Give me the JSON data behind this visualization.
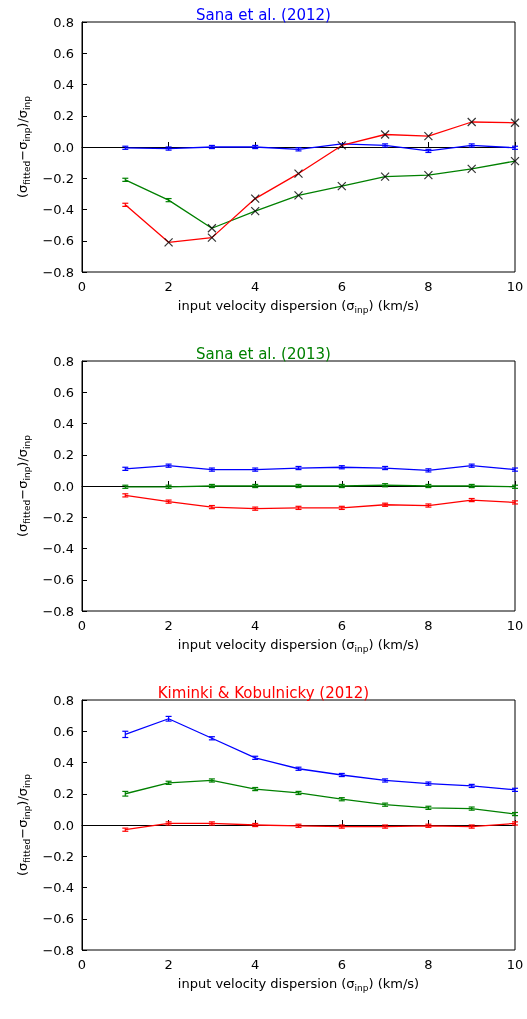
{
  "chart_data": [
    {
      "type": "line",
      "title": "Sana et al. (2012)",
      "xlabel": "input velocity dispersion (σ$_{inp}$) (km/s)",
      "ylabel": "(σ$_{fitted}$−σ$_{inp}$)/σ$_{inp}$",
      "x": [
        1,
        2,
        3,
        4,
        5,
        6,
        7,
        8,
        9,
        10
      ],
      "xlim": [
        0,
        10
      ],
      "xticks": [
        0,
        2,
        4,
        6,
        8,
        10
      ],
      "ylim": [
        -0.8,
        0.8
      ],
      "yticks": [
        {
          "value": -0.8,
          "label": "−0.8"
        },
        {
          "value": -0.6,
          "label": "−0.6"
        },
        {
          "value": -0.4,
          "label": "−0.4"
        },
        {
          "value": -0.2,
          "label": "−0.2"
        },
        {
          "value": 0,
          "label": "0.0"
        },
        {
          "value": 0.2,
          "label": "0.2"
        },
        {
          "value": 0.4,
          "label": "0.4"
        },
        {
          "value": 0.6,
          "label": "0.6"
        },
        {
          "value": 0.8,
          "label": "0.8"
        }
      ],
      "grid": false,
      "marker": "none",
      "series": [
        {
          "color": "#0000ff",
          "values": [
            -0.005,
            -0.01,
            0.0,
            0.0,
            -0.015,
            0.02,
            0.01,
            -0.025,
            0.01,
            -0.005
          ],
          "errors": [
            0.01,
            0.01,
            0.01,
            0.01,
            0.01,
            null,
            0.01,
            0.01,
            0.01,
            0.01
          ]
        },
        {
          "color": "#008000",
          "values": [
            -0.21,
            -0.34,
            -0.52,
            -0.41,
            -0.31,
            -0.25,
            -0.19,
            -0.18,
            -0.14,
            -0.09
          ],
          "errors": [
            0.01,
            0.01,
            null,
            null,
            null,
            null,
            null,
            null,
            null,
            null
          ]
        },
        {
          "color": "#ff0000",
          "values": [
            -0.37,
            -0.61,
            -0.58,
            -0.33,
            -0.17,
            0.01,
            0.08,
            0.07,
            0.16,
            0.155
          ],
          "errors": [
            0.01,
            null,
            null,
            null,
            null,
            null,
            null,
            null,
            null,
            null
          ]
        },
        {
          "type": "scatter",
          "marker": "cross",
          "color": "#000000",
          "x": [
            2,
            3,
            4,
            5,
            6,
            7,
            8,
            9,
            10
          ],
          "values": [
            -0.61,
            -0.58,
            -0.33,
            -0.17,
            0.01,
            0.08,
            0.07,
            0.16,
            0.155
          ]
        },
        {
          "type": "scatter",
          "marker": "cross",
          "color": "#000000",
          "x": [
            3,
            4,
            5,
            6,
            7,
            8,
            9,
            10
          ],
          "values": [
            -0.52,
            -0.41,
            -0.31,
            -0.25,
            -0.19,
            -0.18,
            -0.14,
            -0.09
          ]
        }
      ],
      "ref_lines": [
        {
          "axis": "y",
          "value": 0,
          "label": null,
          "color": "#000000"
        }
      ]
    },
    {
      "type": "line",
      "title": "Sana et al. (2013)",
      "xlabel": "input velocity dispersion (σ$_{inp}$) (km/s)",
      "ylabel": "(σ$_{fitted}$−σ$_{inp}$)/σ$_{inp}$",
      "x": [
        1,
        2,
        3,
        4,
        5,
        6,
        7,
        8,
        9,
        10
      ],
      "xlim": [
        0,
        10
      ],
      "xticks": [
        0,
        2,
        4,
        6,
        8,
        10
      ],
      "ylim": [
        -0.8,
        0.8
      ],
      "yticks": [
        {
          "value": -0.8,
          "label": "−0.8"
        },
        {
          "value": -0.6,
          "label": "−0.6"
        },
        {
          "value": -0.4,
          "label": "−0.4"
        },
        {
          "value": -0.2,
          "label": "−0.2"
        },
        {
          "value": 0,
          "label": "0.0"
        },
        {
          "value": 0.2,
          "label": "0.2"
        },
        {
          "value": 0.4,
          "label": "0.4"
        },
        {
          "value": 0.6,
          "label": "0.6"
        },
        {
          "value": 0.8,
          "label": "0.8"
        }
      ],
      "grid": false,
      "marker": "none",
      "series": [
        {
          "color": "#0000ff",
          "values": [
            0.11,
            0.13,
            0.105,
            0.105,
            0.115,
            0.12,
            0.115,
            0.1,
            0.13,
            0.105
          ],
          "errors": [
            0.01,
            0.01,
            0.01,
            0.01,
            0.01,
            0.01,
            0.01,
            0.01,
            0.01,
            0.01
          ]
        },
        {
          "color": "#008000",
          "values": [
            -0.005,
            -0.005,
            0.0,
            0.0,
            0.0,
            0.0,
            0.005,
            0.0,
            0.0,
            -0.005
          ],
          "errors": [
            0.01,
            0.01,
            0.01,
            0.01,
            0.01,
            0.01,
            0.01,
            0.01,
            0.01,
            0.01
          ]
        },
        {
          "color": "#ff0000",
          "values": [
            -0.06,
            -0.1,
            -0.135,
            -0.145,
            -0.14,
            -0.14,
            -0.12,
            -0.125,
            -0.09,
            -0.105
          ],
          "errors": [
            0.01,
            0.01,
            0.01,
            0.01,
            0.01,
            0.01,
            0.01,
            0.01,
            0.01,
            0.01
          ]
        }
      ],
      "ref_lines": [
        {
          "axis": "y",
          "value": 0,
          "label": null,
          "color": "#000000"
        }
      ]
    },
    {
      "type": "line",
      "title": "Kiminki & Kobulnicky (2012)",
      "xlabel": "input velocity dispersion (σ$_{inp}$) (km/s)",
      "ylabel": "(σ$_{fitted}$−σ$_{inp}$)/σ$_{inp}$",
      "x": [
        1,
        2,
        3,
        4,
        5,
        6,
        7,
        8,
        9,
        10
      ],
      "xlim": [
        0,
        10
      ],
      "xticks": [
        0,
        2,
        4,
        6,
        8,
        10
      ],
      "ylim": [
        -0.8,
        0.8
      ],
      "yticks": [
        {
          "value": -0.8,
          "label": "−0.8"
        },
        {
          "value": -0.6,
          "label": "−0.6"
        },
        {
          "value": -0.4,
          "label": "−0.4"
        },
        {
          "value": -0.2,
          "label": "−0.2"
        },
        {
          "value": 0,
          "label": "0.0"
        },
        {
          "value": 0.2,
          "label": "0.2"
        },
        {
          "value": 0.4,
          "label": "0.4"
        },
        {
          "value": 0.6,
          "label": "0.6"
        },
        {
          "value": 0.8,
          "label": "0.8"
        }
      ],
      "grid": false,
      "marker": "none",
      "series": [
        {
          "color": "#0000ff",
          "values": [
            0.58,
            0.68,
            0.555,
            0.43,
            0.36,
            0.32,
            0.285,
            0.265,
            0.25,
            0.225
          ],
          "errors": [
            0.02,
            0.015,
            0.01,
            0.01,
            0.01,
            0.01,
            0.01,
            0.01,
            0.01,
            0.01
          ]
        },
        {
          "color": "#008000",
          "values": [
            0.2,
            0.27,
            0.285,
            0.23,
            0.205,
            0.165,
            0.13,
            0.11,
            0.105,
            0.07
          ],
          "errors": [
            0.015,
            0.01,
            0.01,
            0.01,
            0.01,
            0.01,
            0.01,
            0.01,
            0.01,
            0.01
          ]
        },
        {
          "color": "#ff0000",
          "values": [
            -0.03,
            0.01,
            0.01,
            0.0,
            -0.005,
            -0.01,
            -0.01,
            -0.005,
            -0.01,
            0.01
          ],
          "errors": [
            0.01,
            0.01,
            0.01,
            0.01,
            0.01,
            0.01,
            0.01,
            0.01,
            0.01,
            0.01
          ]
        }
      ],
      "ref_lines": [
        {
          "axis": "y",
          "value": 0,
          "label": null,
          "color": "#000000"
        }
      ]
    }
  ]
}
